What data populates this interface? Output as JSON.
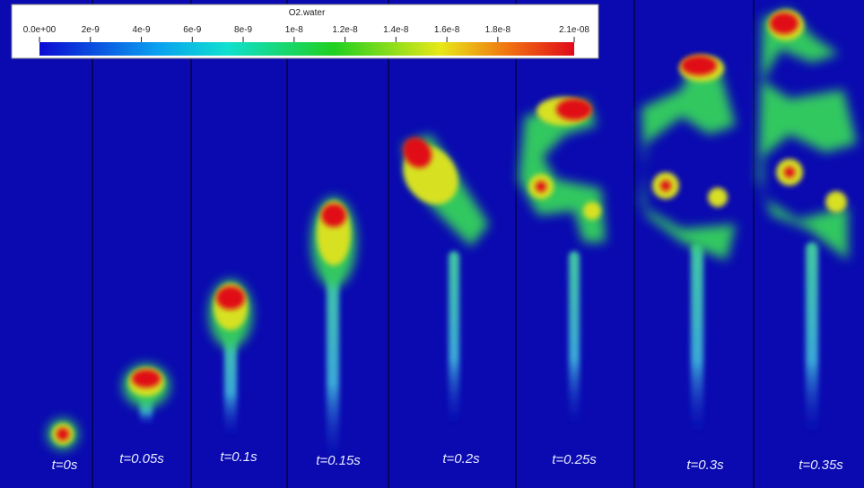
{
  "colorbar": {
    "title": "O2.water",
    "range": [
      0,
      2.1e-08
    ],
    "ticks": [
      {
        "value": 0,
        "label": "0.0e+00"
      },
      {
        "value": 2e-09,
        "label": "2e-9"
      },
      {
        "value": 4e-09,
        "label": "4e-9"
      },
      {
        "value": 6e-09,
        "label": "6e-9"
      },
      {
        "value": 8e-09,
        "label": "8e-9"
      },
      {
        "value": 1e-08,
        "label": "1e-8"
      },
      {
        "value": 1.2e-08,
        "label": "1.2e-8"
      },
      {
        "value": 1.4e-08,
        "label": "1.4e-8"
      },
      {
        "value": 1.6e-08,
        "label": "1.6e-8"
      },
      {
        "value": 1.8e-08,
        "label": "1.8e-8"
      },
      {
        "value": 2.1e-08,
        "label": "2.1e-08"
      }
    ]
  },
  "panels": [
    {
      "label": "t=0s"
    },
    {
      "label": "t=0.05s"
    },
    {
      "label": "t=0.1s"
    },
    {
      "label": "t=0.15s"
    },
    {
      "label": "t=0.2s"
    },
    {
      "label": "t=0.25s"
    },
    {
      "label": "t=0.3s"
    },
    {
      "label": "t=0.35s"
    }
  ]
}
